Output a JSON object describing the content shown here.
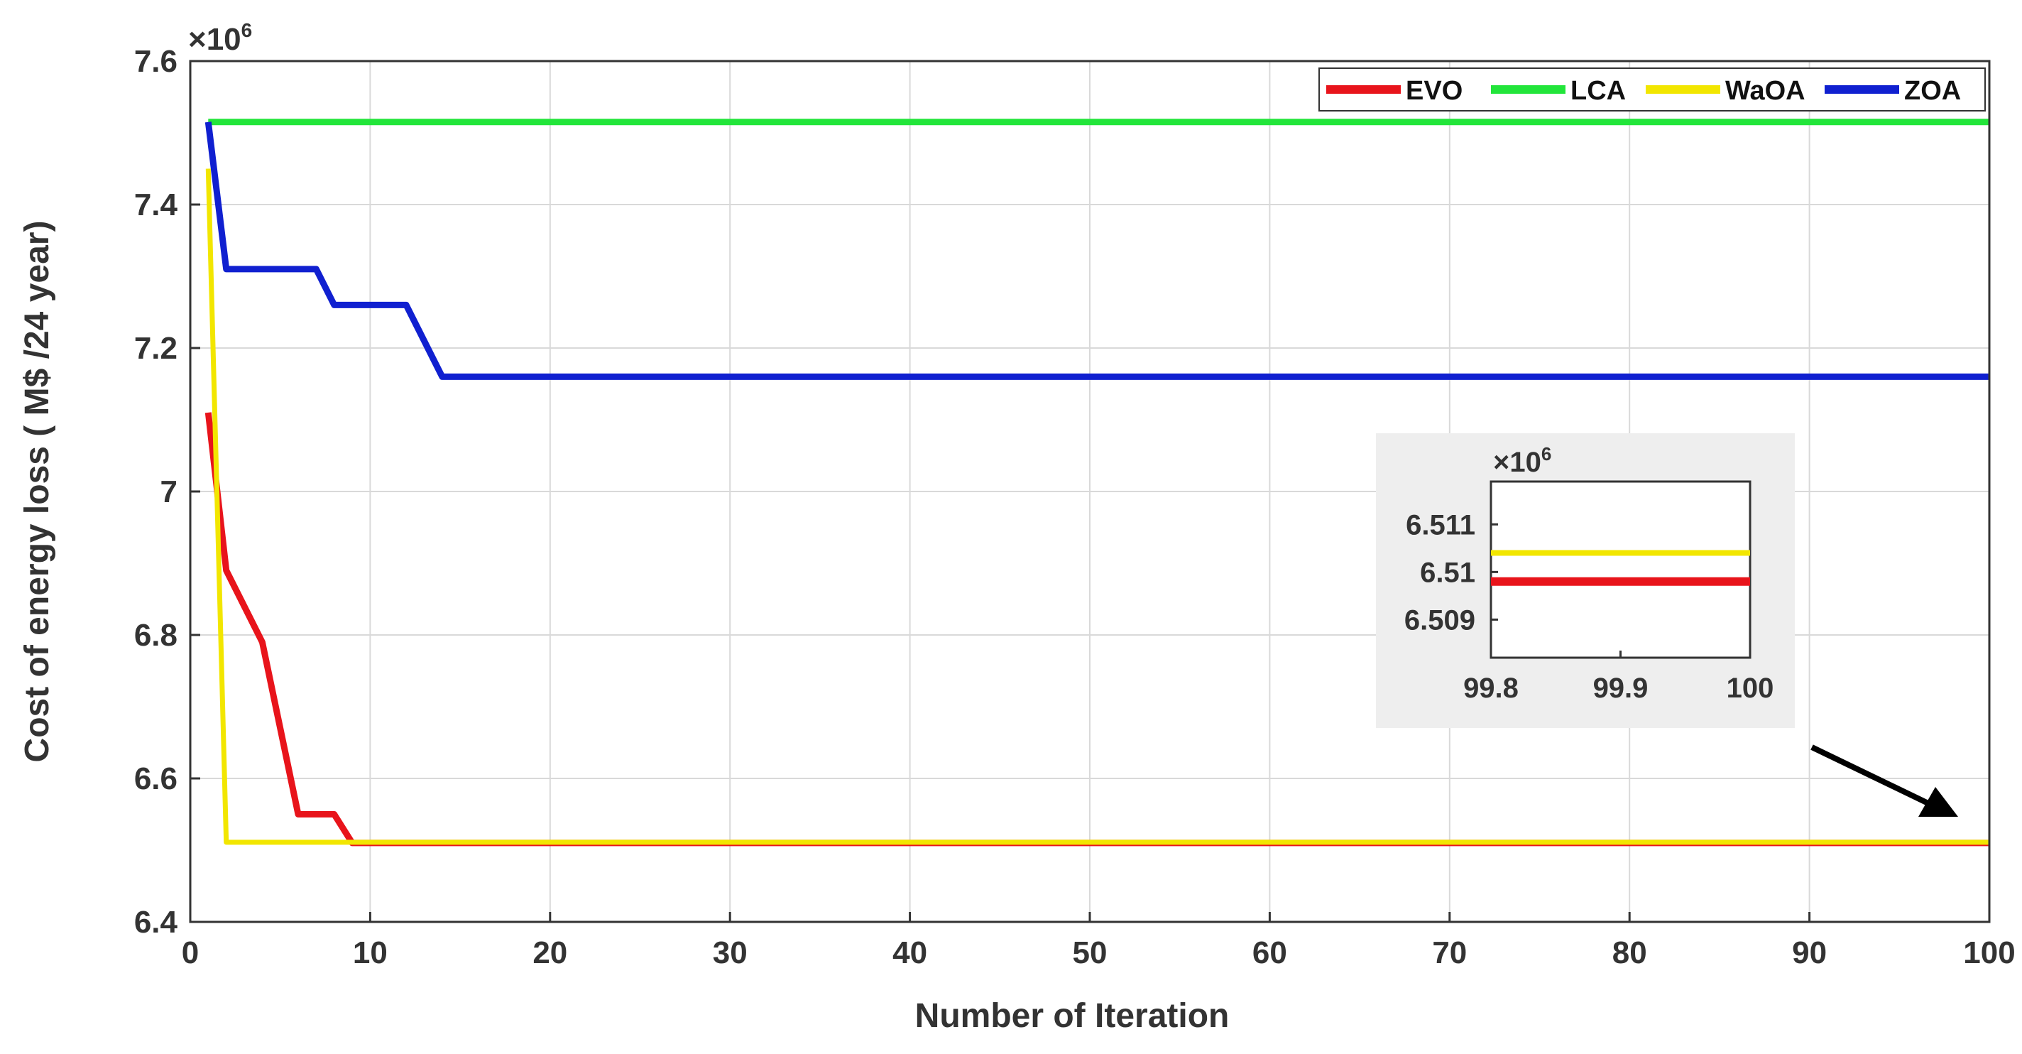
{
  "chart_data": [
    {
      "type": "line",
      "title": "",
      "xlabel": "Number of Iteration",
      "ylabel": "Cost of energy loss ( M$ /24 year)",
      "y_multiplier": "×10^6",
      "xlim": [
        0,
        100
      ],
      "ylim": [
        6.4,
        7.6
      ],
      "x_ticks": [
        "0",
        "10",
        "20",
        "30",
        "40",
        "50",
        "60",
        "70",
        "80",
        "90",
        "100"
      ],
      "y_ticks": [
        "6.4",
        "6.6",
        "6.8",
        "7",
        "7.2",
        "7.4",
        "7.6"
      ],
      "grid": true,
      "legend_position": "top-right",
      "series": [
        {
          "name": "EVO",
          "color": "#e8141b",
          "points": [
            [
              1,
              7.11
            ],
            [
              2,
              6.89
            ],
            [
              4,
              6.79
            ],
            [
              6,
              6.55
            ],
            [
              8,
              6.55
            ],
            [
              9,
              6.51
            ],
            [
              100,
              6.51
            ]
          ]
        },
        {
          "name": "LCA",
          "color": "#22e53a",
          "points": [
            [
              1,
              7.515
            ],
            [
              100,
              7.515
            ]
          ]
        },
        {
          "name": "WaOA",
          "color": "#f2e600",
          "points": [
            [
              1,
              7.45
            ],
            [
              2,
              6.511
            ],
            [
              100,
              6.511
            ]
          ]
        },
        {
          "name": "ZOA",
          "color": "#1020d0",
          "points": [
            [
              1,
              7.515
            ],
            [
              2,
              7.31
            ],
            [
              7,
              7.31
            ],
            [
              8,
              7.26
            ],
            [
              12,
              7.26
            ],
            [
              14,
              7.16
            ],
            [
              100,
              7.16
            ]
          ]
        }
      ]
    },
    {
      "type": "line",
      "title": "",
      "y_multiplier": "×10^6",
      "xlim": [
        99.8,
        100
      ],
      "ylim": [
        6.5082,
        6.5119
      ],
      "x_ticks": [
        "99.8",
        "99.9",
        "100"
      ],
      "y_ticks": [
        "6.509",
        "6.51",
        "6.511"
      ],
      "grid": false,
      "series": [
        {
          "name": "WaOA",
          "color": "#f2e600",
          "points": [
            [
              99.8,
              6.5104
            ],
            [
              100,
              6.5104
            ]
          ]
        },
        {
          "name": "EVO",
          "color": "#e8141b",
          "points": [
            [
              99.8,
              6.5098
            ],
            [
              100,
              6.5098
            ]
          ]
        }
      ]
    }
  ]
}
